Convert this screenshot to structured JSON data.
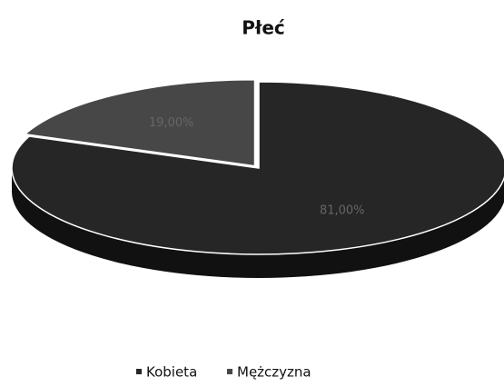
{
  "chart_data": {
    "type": "pie",
    "title": "Płeć",
    "categories": [
      "Kobieta",
      "Mężczyzna"
    ],
    "values": [
      81,
      19
    ],
    "value_labels": [
      "81,00%",
      "19,00%"
    ],
    "colors": [
      "#262626",
      "#474747"
    ],
    "legend": "bottom"
  }
}
